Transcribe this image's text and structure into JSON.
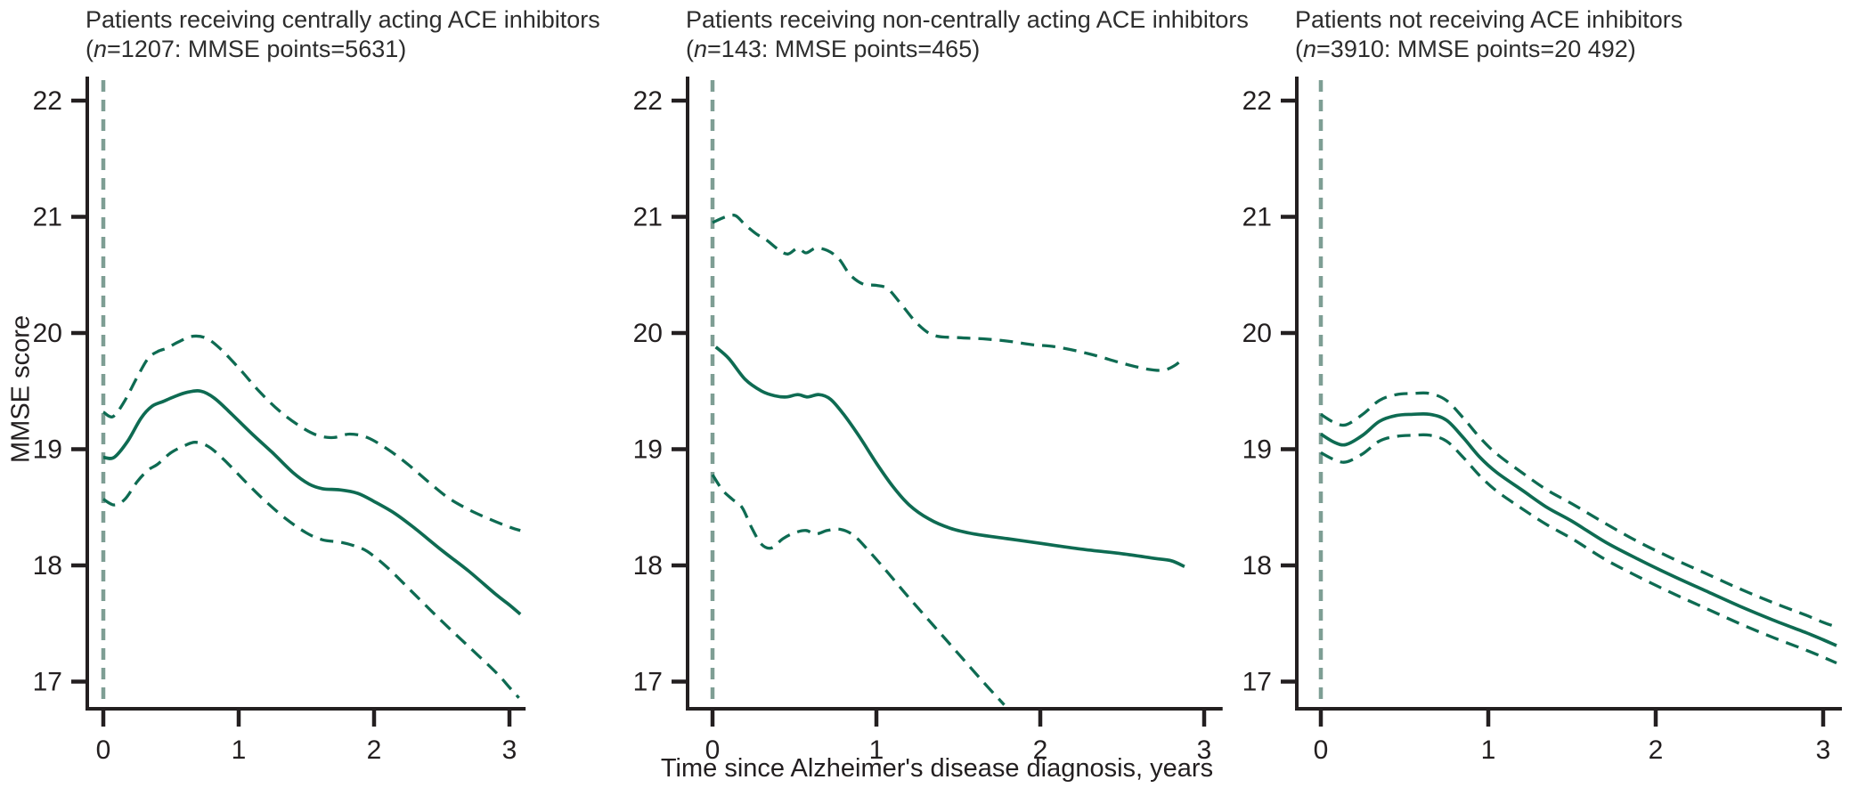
{
  "figure": {
    "y_axis_label": "MMSE score",
    "x_axis_label": "Time since Alzheimer's disease diagnosis, years",
    "colors": {
      "curve": "#0e6b52",
      "reference_line": "#7e9e94",
      "axis": "#231f20",
      "title_text": "#2d2d2d"
    }
  },
  "chart_data": [
    {
      "type": "line",
      "title": "Patients receiving centrally acting ACE inhibitors",
      "subtitle": {
        "prefix": "(",
        "italic": "n",
        "rest": "=1207: MMSE points=5631)"
      },
      "xlabel": "Time since Alzheimer's disease diagnosis, years",
      "ylabel": "MMSE score",
      "x_ticks": [
        0,
        1,
        2,
        3
      ],
      "y_ticks": [
        22,
        21,
        20,
        19,
        18,
        17
      ],
      "xlim": [
        -0.12,
        3.12
      ],
      "ylim": [
        16.77,
        22.2
      ],
      "grid": false,
      "legend": "none",
      "reference_line_x": 0,
      "series": [
        {
          "name": "mean",
          "style": "solid",
          "points": [
            [
              0,
              18.93
            ],
            [
              0.08,
              18.93
            ],
            [
              0.18,
              19.07
            ],
            [
              0.28,
              19.27
            ],
            [
              0.36,
              19.37
            ],
            [
              0.44,
              19.41
            ],
            [
              0.52,
              19.45
            ],
            [
              0.62,
              19.49
            ],
            [
              0.72,
              19.5
            ],
            [
              0.82,
              19.44
            ],
            [
              0.95,
              19.3
            ],
            [
              1.1,
              19.13
            ],
            [
              1.25,
              18.97
            ],
            [
              1.4,
              18.8
            ],
            [
              1.52,
              18.7
            ],
            [
              1.62,
              18.66
            ],
            [
              1.75,
              18.65
            ],
            [
              1.88,
              18.62
            ],
            [
              2.0,
              18.55
            ],
            [
              2.15,
              18.45
            ],
            [
              2.3,
              18.32
            ],
            [
              2.5,
              18.13
            ],
            [
              2.7,
              17.95
            ],
            [
              2.9,
              17.75
            ],
            [
              3.0,
              17.66
            ],
            [
              3.08,
              17.58
            ]
          ]
        },
        {
          "name": "upper-ci",
          "style": "dashed",
          "points": [
            [
              0,
              19.32
            ],
            [
              0.07,
              19.28
            ],
            [
              0.15,
              19.4
            ],
            [
              0.25,
              19.62
            ],
            [
              0.33,
              19.78
            ],
            [
              0.4,
              19.84
            ],
            [
              0.47,
              19.87
            ],
            [
              0.55,
              19.92
            ],
            [
              0.65,
              19.97
            ],
            [
              0.75,
              19.96
            ],
            [
              0.85,
              19.88
            ],
            [
              1.0,
              19.7
            ],
            [
              1.15,
              19.5
            ],
            [
              1.3,
              19.33
            ],
            [
              1.45,
              19.2
            ],
            [
              1.58,
              19.12
            ],
            [
              1.7,
              19.1
            ],
            [
              1.82,
              19.13
            ],
            [
              1.95,
              19.1
            ],
            [
              2.1,
              19.0
            ],
            [
              2.25,
              18.87
            ],
            [
              2.4,
              18.72
            ],
            [
              2.55,
              18.58
            ],
            [
              2.7,
              18.48
            ],
            [
              2.85,
              18.4
            ],
            [
              3.0,
              18.33
            ],
            [
              3.08,
              18.3
            ]
          ]
        },
        {
          "name": "lower-ci",
          "style": "dashed",
          "points": [
            [
              0,
              18.57
            ],
            [
              0.08,
              18.52
            ],
            [
              0.16,
              18.57
            ],
            [
              0.25,
              18.72
            ],
            [
              0.33,
              18.82
            ],
            [
              0.4,
              18.87
            ],
            [
              0.5,
              18.97
            ],
            [
              0.6,
              19.03
            ],
            [
              0.68,
              19.06
            ],
            [
              0.78,
              19.02
            ],
            [
              0.9,
              18.9
            ],
            [
              1.05,
              18.72
            ],
            [
              1.2,
              18.55
            ],
            [
              1.35,
              18.4
            ],
            [
              1.5,
              18.28
            ],
            [
              1.62,
              18.22
            ],
            [
              1.75,
              18.2
            ],
            [
              1.85,
              18.17
            ],
            [
              1.95,
              18.12
            ],
            [
              2.1,
              17.98
            ],
            [
              2.3,
              17.75
            ],
            [
              2.5,
              17.52
            ],
            [
              2.7,
              17.3
            ],
            [
              2.9,
              17.08
            ],
            [
              3.0,
              16.95
            ],
            [
              3.07,
              16.86
            ]
          ]
        }
      ]
    },
    {
      "type": "line",
      "title": "Patients receiving non-centrally acting ACE inhibitors",
      "subtitle": {
        "prefix": "(",
        "italic": "n",
        "rest": "=143: MMSE points=465)"
      },
      "xlabel": "Time since Alzheimer's disease diagnosis, years",
      "ylabel": "MMSE score",
      "x_ticks": [
        0,
        1,
        2,
        3
      ],
      "y_ticks": [
        22,
        21,
        20,
        19,
        18,
        17
      ],
      "xlim": [
        -0.12,
        3.12
      ],
      "ylim": [
        16.77,
        22.2
      ],
      "grid": false,
      "legend": "none",
      "reference_line_x": 0,
      "series": [
        {
          "name": "mean",
          "style": "solid",
          "points": [
            [
              0.02,
              19.88
            ],
            [
              0.1,
              19.78
            ],
            [
              0.2,
              19.6
            ],
            [
              0.3,
              19.5
            ],
            [
              0.38,
              19.46
            ],
            [
              0.45,
              19.45
            ],
            [
              0.52,
              19.47
            ],
            [
              0.58,
              19.45
            ],
            [
              0.65,
              19.47
            ],
            [
              0.72,
              19.43
            ],
            [
              0.8,
              19.3
            ],
            [
              0.9,
              19.1
            ],
            [
              1.0,
              18.88
            ],
            [
              1.1,
              18.68
            ],
            [
              1.2,
              18.52
            ],
            [
              1.32,
              18.4
            ],
            [
              1.45,
              18.32
            ],
            [
              1.6,
              18.27
            ],
            [
              1.8,
              18.23
            ],
            [
              2.0,
              18.19
            ],
            [
              2.25,
              18.14
            ],
            [
              2.5,
              18.1
            ],
            [
              2.7,
              18.06
            ],
            [
              2.8,
              18.04
            ],
            [
              2.88,
              17.99
            ]
          ]
        },
        {
          "name": "upper-ci",
          "style": "dashed",
          "points": [
            [
              0,
              20.95
            ],
            [
              0.08,
              21.0
            ],
            [
              0.14,
              21.01
            ],
            [
              0.2,
              20.93
            ],
            [
              0.27,
              20.85
            ],
            [
              0.33,
              20.8
            ],
            [
              0.4,
              20.72
            ],
            [
              0.46,
              20.68
            ],
            [
              0.52,
              20.73
            ],
            [
              0.57,
              20.69
            ],
            [
              0.63,
              20.73
            ],
            [
              0.7,
              20.71
            ],
            [
              0.77,
              20.64
            ],
            [
              0.84,
              20.5
            ],
            [
              0.92,
              20.42
            ],
            [
              1.0,
              20.41
            ],
            [
              1.07,
              20.38
            ],
            [
              1.15,
              20.25
            ],
            [
              1.25,
              20.08
            ],
            [
              1.35,
              19.98
            ],
            [
              1.5,
              19.96
            ],
            [
              1.65,
              19.95
            ],
            [
              1.8,
              19.93
            ],
            [
              1.95,
              19.9
            ],
            [
              2.1,
              19.88
            ],
            [
              2.3,
              19.82
            ],
            [
              2.5,
              19.74
            ],
            [
              2.65,
              19.69
            ],
            [
              2.75,
              19.68
            ],
            [
              2.82,
              19.72
            ],
            [
              2.88,
              19.79
            ]
          ]
        },
        {
          "name": "lower-ci",
          "style": "dashed",
          "points": [
            [
              0,
              18.78
            ],
            [
              0.06,
              18.65
            ],
            [
              0.12,
              18.57
            ],
            [
              0.18,
              18.5
            ],
            [
              0.24,
              18.32
            ],
            [
              0.3,
              18.18
            ],
            [
              0.36,
              18.15
            ],
            [
              0.43,
              18.23
            ],
            [
              0.5,
              18.28
            ],
            [
              0.57,
              18.3
            ],
            [
              0.63,
              18.27
            ],
            [
              0.7,
              18.3
            ],
            [
              0.78,
              18.31
            ],
            [
              0.86,
              18.26
            ],
            [
              0.95,
              18.13
            ],
            [
              1.05,
              17.97
            ],
            [
              1.2,
              17.72
            ],
            [
              1.35,
              17.48
            ],
            [
              1.5,
              17.24
            ],
            [
              1.65,
              17.0
            ],
            [
              1.78,
              16.8
            ]
          ]
        }
      ]
    },
    {
      "type": "line",
      "title": "Patients not receiving ACE inhibitors",
      "subtitle": {
        "prefix": "(",
        "italic": "n",
        "rest": "=3910: MMSE points=20 492)"
      },
      "xlabel": "Time since Alzheimer's disease diagnosis, years",
      "ylabel": "MMSE score",
      "x_ticks": [
        0,
        1,
        2,
        3
      ],
      "y_ticks": [
        22,
        21,
        20,
        19,
        18,
        17
      ],
      "xlim": [
        -0.12,
        3.12
      ],
      "ylim": [
        16.77,
        22.2
      ],
      "grid": false,
      "legend": "none",
      "reference_line_x": 0,
      "series": [
        {
          "name": "mean",
          "style": "solid",
          "points": [
            [
              0,
              19.13
            ],
            [
              0.08,
              19.06
            ],
            [
              0.15,
              19.04
            ],
            [
              0.25,
              19.12
            ],
            [
              0.35,
              19.24
            ],
            [
              0.45,
              19.29
            ],
            [
              0.55,
              19.3
            ],
            [
              0.65,
              19.3
            ],
            [
              0.75,
              19.25
            ],
            [
              0.85,
              19.1
            ],
            [
              0.95,
              18.93
            ],
            [
              1.05,
              18.8
            ],
            [
              1.2,
              18.65
            ],
            [
              1.35,
              18.5
            ],
            [
              1.5,
              18.38
            ],
            [
              1.7,
              18.2
            ],
            [
              1.9,
              18.05
            ],
            [
              2.1,
              17.91
            ],
            [
              2.3,
              17.78
            ],
            [
              2.5,
              17.65
            ],
            [
              2.7,
              17.53
            ],
            [
              2.9,
              17.42
            ],
            [
              3.0,
              17.36
            ],
            [
              3.08,
              17.31
            ]
          ]
        },
        {
          "name": "upper-ci",
          "style": "dashed",
          "points": [
            [
              0,
              19.3
            ],
            [
              0.08,
              19.23
            ],
            [
              0.15,
              19.21
            ],
            [
              0.25,
              19.3
            ],
            [
              0.35,
              19.42
            ],
            [
              0.45,
              19.47
            ],
            [
              0.55,
              19.48
            ],
            [
              0.65,
              19.48
            ],
            [
              0.75,
              19.42
            ],
            [
              0.85,
              19.27
            ],
            [
              0.95,
              19.1
            ],
            [
              1.05,
              18.96
            ],
            [
              1.2,
              18.8
            ],
            [
              1.35,
              18.65
            ],
            [
              1.5,
              18.53
            ],
            [
              1.7,
              18.36
            ],
            [
              1.9,
              18.2
            ],
            [
              2.1,
              18.06
            ],
            [
              2.3,
              17.93
            ],
            [
              2.5,
              17.8
            ],
            [
              2.7,
              17.68
            ],
            [
              2.9,
              17.57
            ],
            [
              3.0,
              17.51
            ],
            [
              3.08,
              17.47
            ]
          ]
        },
        {
          "name": "lower-ci",
          "style": "dashed",
          "points": [
            [
              0,
              18.97
            ],
            [
              0.08,
              18.91
            ],
            [
              0.15,
              18.89
            ],
            [
              0.25,
              18.96
            ],
            [
              0.35,
              19.07
            ],
            [
              0.45,
              19.11
            ],
            [
              0.55,
              19.12
            ],
            [
              0.65,
              19.12
            ],
            [
              0.75,
              19.07
            ],
            [
              0.85,
              18.93
            ],
            [
              0.95,
              18.77
            ],
            [
              1.05,
              18.64
            ],
            [
              1.2,
              18.49
            ],
            [
              1.35,
              18.35
            ],
            [
              1.5,
              18.23
            ],
            [
              1.7,
              18.05
            ],
            [
              1.9,
              17.9
            ],
            [
              2.1,
              17.76
            ],
            [
              2.3,
              17.63
            ],
            [
              2.5,
              17.5
            ],
            [
              2.7,
              17.38
            ],
            [
              2.9,
              17.27
            ],
            [
              3.0,
              17.21
            ],
            [
              3.08,
              17.16
            ]
          ]
        }
      ]
    }
  ]
}
